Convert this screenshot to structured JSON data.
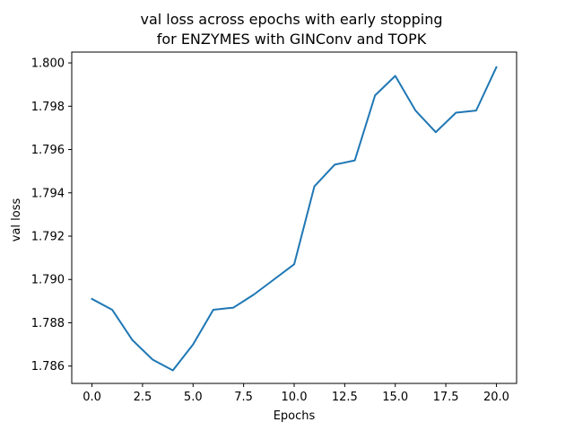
{
  "chart_data": {
    "type": "line",
    "title_line1": "val loss across epochs with early stopping",
    "title_line2": "for ENZYMES with GINConv and TOPK",
    "xlabel": "Epochs",
    "ylabel": "val loss",
    "xlim": [
      -1,
      21
    ],
    "ylim": [
      1.7852,
      1.8005
    ],
    "x_ticks": [
      0.0,
      2.5,
      5.0,
      7.5,
      10.0,
      12.5,
      15.0,
      17.5,
      20.0
    ],
    "x_tick_labels": [
      "0.0",
      "2.5",
      "5.0",
      "7.5",
      "10.0",
      "12.5",
      "15.0",
      "17.5",
      "20.0"
    ],
    "y_ticks": [
      1.786,
      1.788,
      1.79,
      1.792,
      1.794,
      1.796,
      1.798,
      1.8
    ],
    "y_tick_labels": [
      "1.786",
      "1.788",
      "1.790",
      "1.792",
      "1.794",
      "1.796",
      "1.798",
      "1.800"
    ],
    "grid": false,
    "series": [
      {
        "color": "#1f77b4",
        "x": [
          0,
          1,
          2,
          3,
          4,
          5,
          6,
          7,
          8,
          9,
          10,
          11,
          12,
          13,
          14,
          15,
          16,
          17,
          18,
          19,
          20
        ],
        "values": [
          1.7891,
          1.7886,
          1.7872,
          1.7863,
          1.7858,
          1.787,
          1.7886,
          1.7887,
          1.7893,
          1.79,
          1.7907,
          1.7943,
          1.7953,
          1.7955,
          1.7985,
          1.7994,
          1.7978,
          1.7968,
          1.7977,
          1.7978,
          1.7998
        ]
      }
    ]
  }
}
